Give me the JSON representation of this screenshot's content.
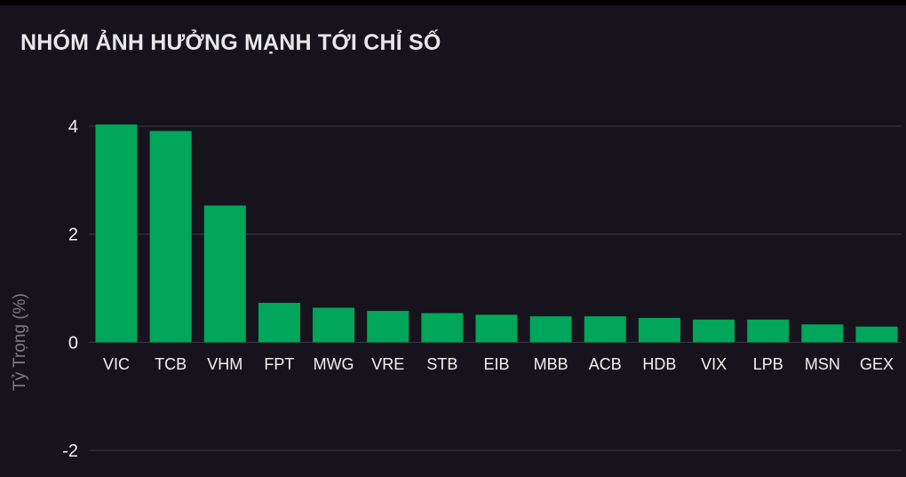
{
  "title": "NHÓM ẢNH HƯỞNG MẠNH TỚI CHỈ SỐ",
  "colors": {
    "background": "#16131c",
    "bar": "#00a65a",
    "grid": "#3a3a45",
    "tick_text": "#f2f2f2",
    "axis_label": "#7a7a84"
  },
  "chart_data": {
    "type": "bar",
    "categories": [
      "VIC",
      "TCB",
      "VHM",
      "FPT",
      "MWG",
      "VRE",
      "STB",
      "EIB",
      "MBB",
      "ACB",
      "HDB",
      "VIX",
      "LPB",
      "MSN",
      "GEX"
    ],
    "values": [
      4.03,
      3.91,
      2.53,
      0.73,
      0.64,
      0.58,
      0.54,
      0.51,
      0.48,
      0.48,
      0.45,
      0.42,
      0.42,
      0.33,
      0.29
    ],
    "ylabel": "Tỷ Trọng (%)",
    "yticks": [
      4,
      2,
      0,
      -2
    ],
    "ylim": [
      -2,
      4
    ],
    "grid": true,
    "legend": false
  }
}
